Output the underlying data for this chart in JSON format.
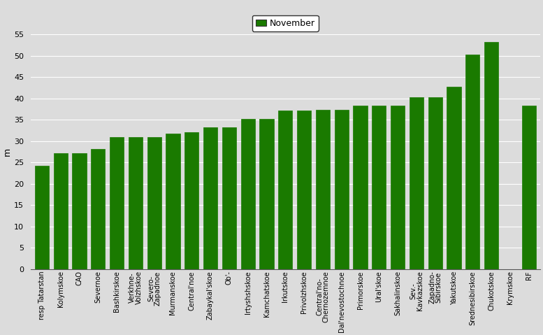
{
  "categories": [
    "resp Tatarstan",
    "Kolymskoe",
    "CAO",
    "Severnoe",
    "Bashkirskoe",
    "Verkhne-\nVolzhskoe",
    "Severo-\nZapadnoe",
    "Murmanskoe",
    "Central'noe",
    "Zabaykal'skoe",
    "Ob'-",
    "Irtyshshskoe",
    "Kamchatskoe",
    "Irkutskoe",
    "Privolzhskoe",
    "Central'no-\nChernozemnoe",
    "Dal'nevostochnoe",
    "Primorskoe",
    "Ural'skoe",
    "Sakhalinskoe",
    "Sev.-\nKavkazskoe",
    "Zapadno-\nSibirskoe",
    "Yakutskoe",
    "Srednesibirskoe",
    "Chukotskoe",
    "Krymskoe",
    "RF"
  ],
  "values": [
    24.2,
    27.2,
    27.2,
    28.2,
    31.0,
    31.0,
    31.0,
    31.8,
    32.0,
    33.2,
    33.2,
    35.2,
    35.2,
    37.2,
    37.2,
    37.3,
    37.3,
    38.3,
    38.3,
    38.3,
    40.2,
    40.2,
    42.8,
    50.3,
    53.3,
    0.0,
    38.3
  ],
  "bar_color": "#1a7a00",
  "ylabel": "m",
  "ylim": [
    0,
    55
  ],
  "yticks": [
    0,
    5,
    10,
    15,
    20,
    25,
    30,
    35,
    40,
    45,
    50,
    55
  ],
  "legend_label": "November",
  "legend_facecolor": "#1a7a00",
  "bg_color": "#dcdcdc",
  "plot_bg_color": "#dcdcdc",
  "grid_color": "#ffffff",
  "spine_color": "#555555",
  "ylabel_fontsize": 9,
  "tick_fontsize": 7,
  "legend_fontsize": 9,
  "bar_width": 0.75
}
